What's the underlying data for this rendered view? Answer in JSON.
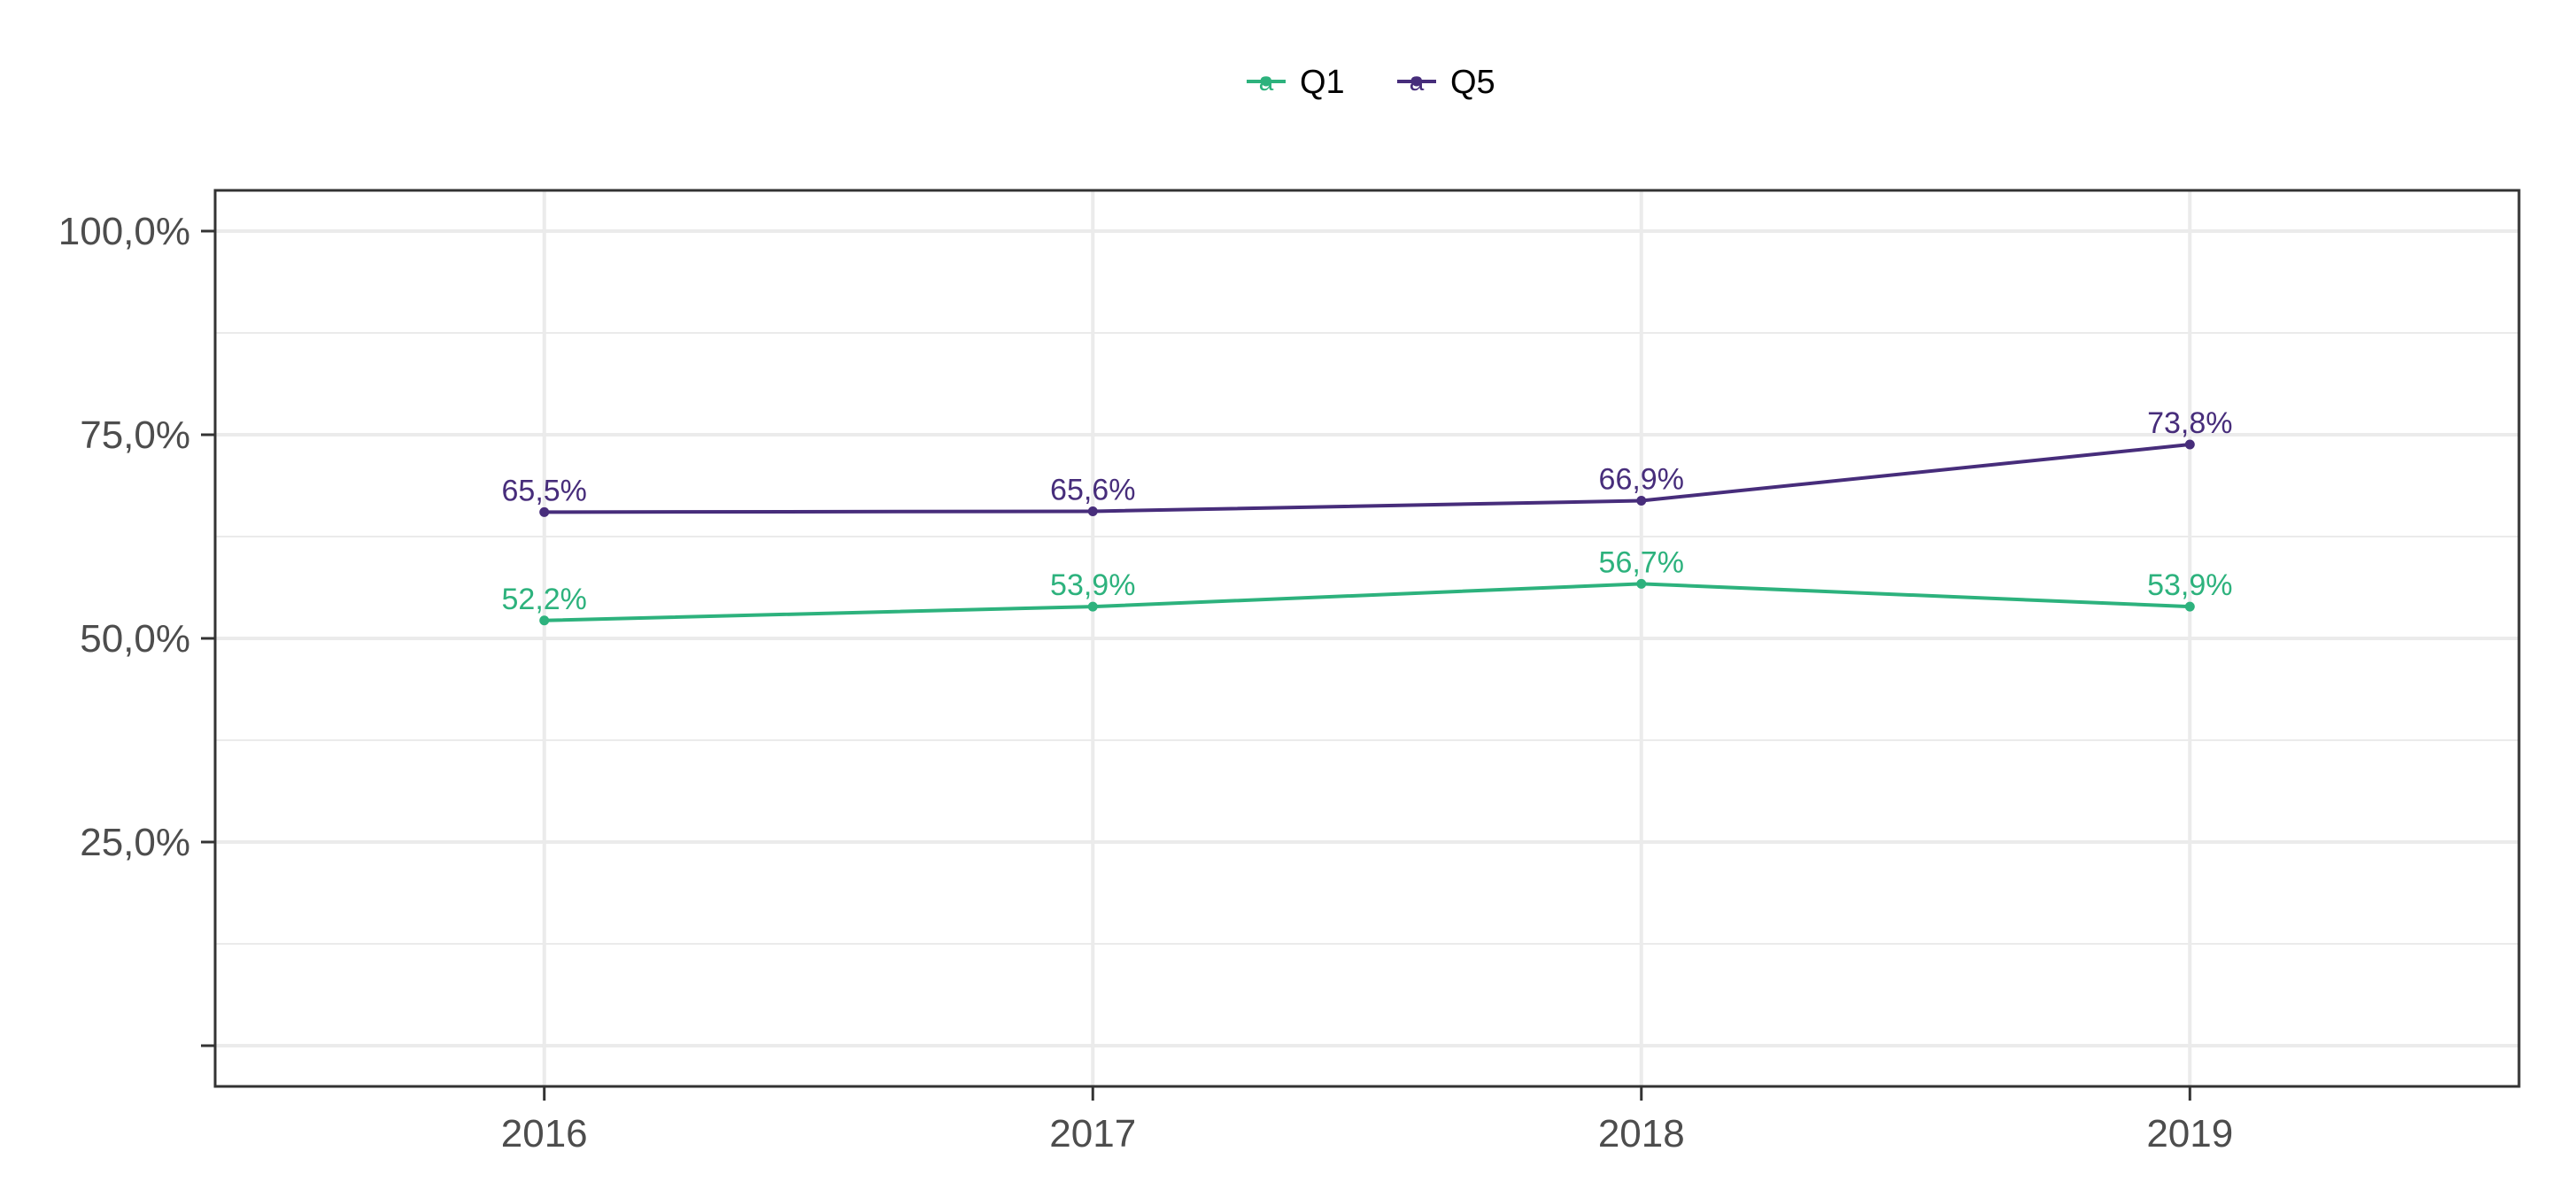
{
  "chart_data": {
    "type": "line",
    "title": "",
    "xlabel": "",
    "ylabel": "",
    "x": [
      "2016",
      "2017",
      "2018",
      "2019"
    ],
    "ylim": [
      -0.05,
      1.05
    ],
    "y_ticks": [
      0,
      0.25,
      0.5,
      0.75,
      1.0
    ],
    "y_tick_labels": [
      "",
      "25,0%",
      "50,0%",
      "75,0%",
      "100,0%"
    ],
    "grid": true,
    "legend_position": "top",
    "series": [
      {
        "name": "Q1",
        "color": "#2db27d",
        "values": [
          0.522,
          0.539,
          0.567,
          0.539
        ],
        "labels": [
          "52,2%",
          "53,9%",
          "56,7%",
          "53,9%"
        ]
      },
      {
        "name": "Q5",
        "color": "#472d7b",
        "values": [
          0.655,
          0.656,
          0.669,
          0.738
        ],
        "labels": [
          "65,5%",
          "65,6%",
          "66,9%",
          "73,8%"
        ]
      }
    ],
    "legend_key_glyph": "a"
  }
}
